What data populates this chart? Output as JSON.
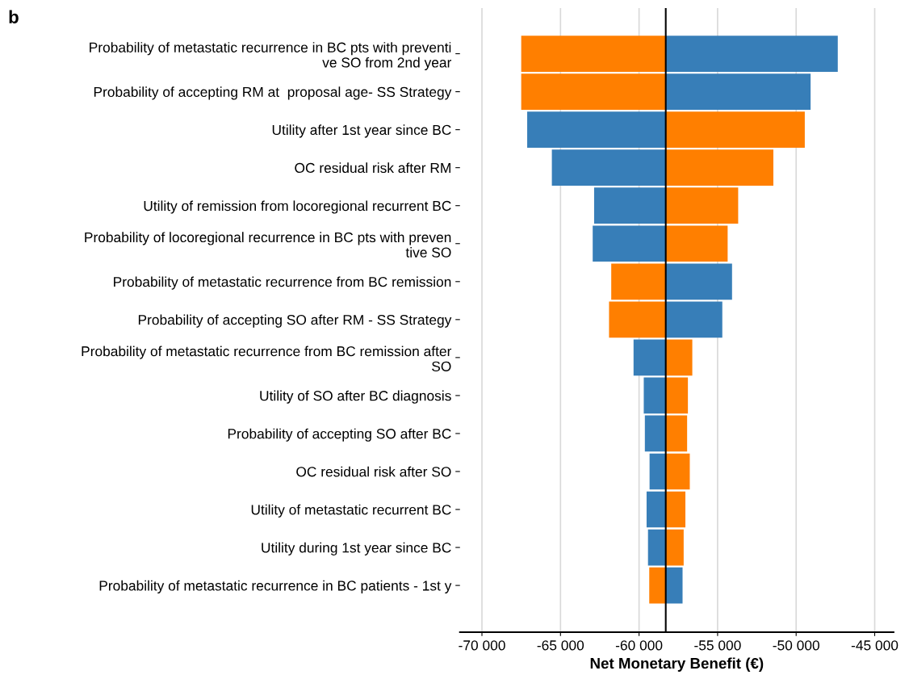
{
  "chart_data": {
    "type": "bar",
    "orientation": "horizontal",
    "title": "b",
    "xlabel": "Net Monetary Benefit (€)",
    "categories": [
      "Probability of metastatic recurrence in BC pts with preventi\nve SO from 2nd year",
      "Probability of accepting RM at  proposal age- SS Strategy",
      "Utility after 1st year since BC",
      "OC residual risk after RM",
      "Utility of remission from locoregional recurrent BC",
      "Probability of locoregional recurrence in BC pts with preven\ntive SO",
      "Probability of metastatic recurrence from BC remission",
      "Probability of accepting SO after RM - SS Strategy",
      "Probability of metastatic recurrence from BC remission after\nSO",
      "Utility of SO after BC diagnosis",
      "Probability of accepting SO after BC",
      "OC residual risk after SO",
      "Utility of metastatic recurrent BC",
      "Utility during 1st year since BC",
      "Probability of metastatic recurrence in BC patients - 1st y"
    ],
    "series": [
      {
        "color": "#ff7f00",
        "base": [
          -58300,
          -58300,
          -58300,
          -58300,
          -58300,
          -58300,
          -58300,
          -58300,
          -58300,
          -58300,
          -58300,
          -58300,
          -58300,
          -58300,
          -58300
        ],
        "values": [
          -9200,
          -9200,
          8850,
          6850,
          4610,
          3940,
          -3470,
          -3610,
          1690,
          1410,
          1360,
          1530,
          1250,
          1140,
          -1050
        ]
      },
      {
        "color": "#377eb8",
        "base": [
          -58300,
          -58300,
          -58300,
          -58300,
          -58300,
          -58300,
          -58300,
          -58300,
          -58300,
          -58300,
          -58300,
          -58300,
          -58300,
          -58300,
          -58300
        ],
        "values": [
          10950,
          9220,
          -8820,
          -7250,
          -4560,
          -4650,
          4220,
          3600,
          -2050,
          -1400,
          -1330,
          -1030,
          -1220,
          -1130,
          1070
        ]
      }
    ],
    "xlim": [
      -71400,
      -43800
    ],
    "xticks": [
      {
        "value": -70000,
        "label": "-70 000"
      },
      {
        "value": -65000,
        "label": "-65 000"
      },
      {
        "value": -60000,
        "label": "-60 000"
      },
      {
        "value": -55000,
        "label": "-55 000"
      },
      {
        "value": -50000,
        "label": "-50 000"
      },
      {
        "value": -45000,
        "label": "-45 000"
      }
    ],
    "ref_lines": [
      {
        "axis": "x",
        "value": -58300,
        "color": "#000000"
      }
    ],
    "grid": "x",
    "legend": false
  }
}
